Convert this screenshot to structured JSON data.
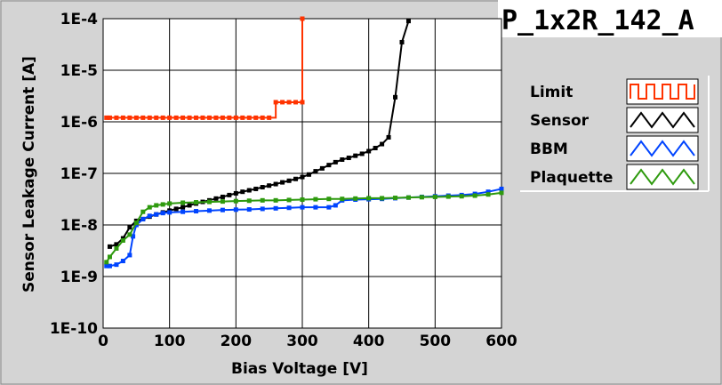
{
  "chart_data": {
    "type": "line",
    "title": "P_1x2R_142_A",
    "xlabel": "Bias Voltage [V]",
    "ylabel": "Sensor Leakage Current [A]",
    "xlim": [
      0,
      600
    ],
    "ylim": [
      1e-10,
      0.0001
    ],
    "yscale": "log",
    "grid": true,
    "legend_position": "right",
    "x_ticks": [
      "0",
      "100",
      "200",
      "300",
      "400",
      "500",
      "600"
    ],
    "y_ticks": [
      "1E-10",
      "1E-9",
      "1E-8",
      "1E-7",
      "1E-6",
      "1E-5",
      "1E-4"
    ],
    "series": [
      {
        "name": "Limit",
        "color": "#ff3300",
        "step": true,
        "x": [
          5,
          10,
          20,
          30,
          40,
          50,
          60,
          70,
          80,
          90,
          100,
          110,
          120,
          130,
          140,
          150,
          160,
          170,
          180,
          190,
          200,
          210,
          220,
          230,
          240,
          250,
          260,
          270,
          280,
          290,
          300,
          300
        ],
        "y": [
          1.2e-06,
          1.2e-06,
          1.2e-06,
          1.2e-06,
          1.2e-06,
          1.2e-06,
          1.2e-06,
          1.2e-06,
          1.2e-06,
          1.2e-06,
          1.2e-06,
          1.2e-06,
          1.2e-06,
          1.2e-06,
          1.2e-06,
          1.2e-06,
          1.2e-06,
          1.2e-06,
          1.2e-06,
          1.2e-06,
          1.2e-06,
          1.2e-06,
          1.2e-06,
          1.2e-06,
          1.2e-06,
          1.2e-06,
          2.4e-06,
          2.4e-06,
          2.4e-06,
          2.4e-06,
          2.4e-06,
          0.0001
        ]
      },
      {
        "name": "Sensor",
        "color": "#000000",
        "x": [
          10,
          20,
          30,
          40,
          50,
          60,
          70,
          80,
          90,
          100,
          110,
          120,
          130,
          140,
          150,
          160,
          170,
          180,
          190,
          200,
          210,
          220,
          230,
          240,
          250,
          260,
          270,
          280,
          290,
          300,
          310,
          320,
          330,
          340,
          350,
          360,
          370,
          380,
          390,
          400,
          410,
          420,
          430,
          440,
          450,
          460
        ],
        "y": [
          3.8e-09,
          4.2e-09,
          5.5e-09,
          9e-09,
          1.2e-08,
          1.3e-08,
          1.45e-08,
          1.6e-08,
          1.75e-08,
          1.9e-08,
          2.05e-08,
          2.2e-08,
          2.4e-08,
          2.6e-08,
          2.8e-08,
          3e-08,
          3.25e-08,
          3.5e-08,
          3.8e-08,
          4.1e-08,
          4.4e-08,
          4.7e-08,
          5e-08,
          5.4e-08,
          5.8e-08,
          6.2e-08,
          6.7e-08,
          7.2e-08,
          7.8e-08,
          8.5e-08,
          9.5e-08,
          1.1e-07,
          1.25e-07,
          1.45e-07,
          1.65e-07,
          1.85e-07,
          2e-07,
          2.2e-07,
          2.4e-07,
          2.7e-07,
          3.1e-07,
          3.7e-07,
          5e-07,
          3e-06,
          3.5e-05,
          9e-05
        ]
      },
      {
        "name": "BBM",
        "color": "#0044ff",
        "x": [
          5,
          10,
          20,
          30,
          40,
          45,
          50,
          60,
          70,
          80,
          90,
          100,
          120,
          140,
          160,
          180,
          200,
          220,
          240,
          260,
          280,
          300,
          320,
          340,
          350,
          360,
          380,
          400,
          420,
          440,
          460,
          480,
          500,
          520,
          540,
          560,
          580,
          600
        ],
        "y": [
          1.6e-09,
          1.6e-09,
          1.7e-09,
          2e-09,
          2.6e-09,
          6e-09,
          1e-08,
          1.3e-08,
          1.5e-08,
          1.6e-08,
          1.7e-08,
          1.75e-08,
          1.8e-08,
          1.85e-08,
          1.9e-08,
          1.95e-08,
          1.98e-08,
          2e-08,
          2.05e-08,
          2.1e-08,
          2.15e-08,
          2.2e-08,
          2.2e-08,
          2.2e-08,
          2.4e-08,
          3e-08,
          3.1e-08,
          3.15e-08,
          3.2e-08,
          3.3e-08,
          3.4e-08,
          3.5e-08,
          3.6e-08,
          3.7e-08,
          3.8e-08,
          4e-08,
          4.4e-08,
          5e-08
        ]
      },
      {
        "name": "Plaquette",
        "color": "#2e9a0e",
        "x": [
          5,
          10,
          20,
          30,
          40,
          50,
          60,
          70,
          80,
          90,
          100,
          120,
          140,
          160,
          180,
          200,
          220,
          240,
          260,
          280,
          300,
          320,
          340,
          360,
          380,
          400,
          420,
          440,
          460,
          480,
          500,
          520,
          540,
          560,
          580,
          600
        ],
        "y": [
          1.9e-09,
          2.4e-09,
          3.5e-09,
          5e-09,
          6.5e-09,
          1.1e-08,
          1.8e-08,
          2.2e-08,
          2.4e-08,
          2.5e-08,
          2.6e-08,
          2.7e-08,
          2.75e-08,
          2.8e-08,
          2.85e-08,
          2.9e-08,
          2.95e-08,
          3e-08,
          3e-08,
          3.05e-08,
          3.1e-08,
          3.15e-08,
          3.2e-08,
          3.2e-08,
          3.25e-08,
          3.3e-08,
          3.3e-08,
          3.35e-08,
          3.4e-08,
          3.45e-08,
          3.5e-08,
          3.55e-08,
          3.6e-08,
          3.7e-08,
          3.9e-08,
          4.2e-08
        ]
      }
    ]
  }
}
